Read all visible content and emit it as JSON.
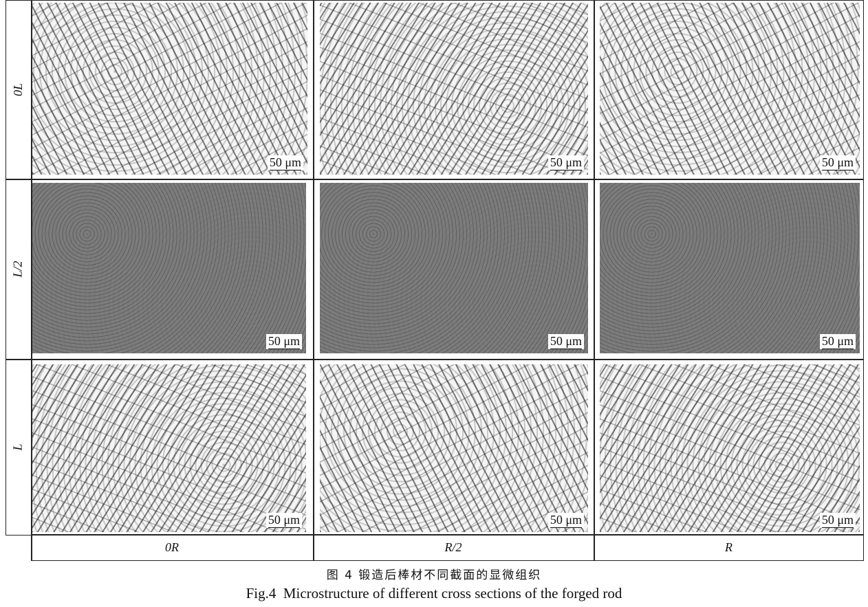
{
  "figure": {
    "row_labels": [
      "0L",
      "L/2",
      "L"
    ],
    "column_labels": [
      "0R",
      "R/2",
      "R"
    ],
    "scale_bar": "50 μm",
    "caption_cn": "图 4  锻造后棒材不同截面的显微组织",
    "caption_en": "Fig.4  Microstructure of different cross sections of the forged rod"
  }
}
